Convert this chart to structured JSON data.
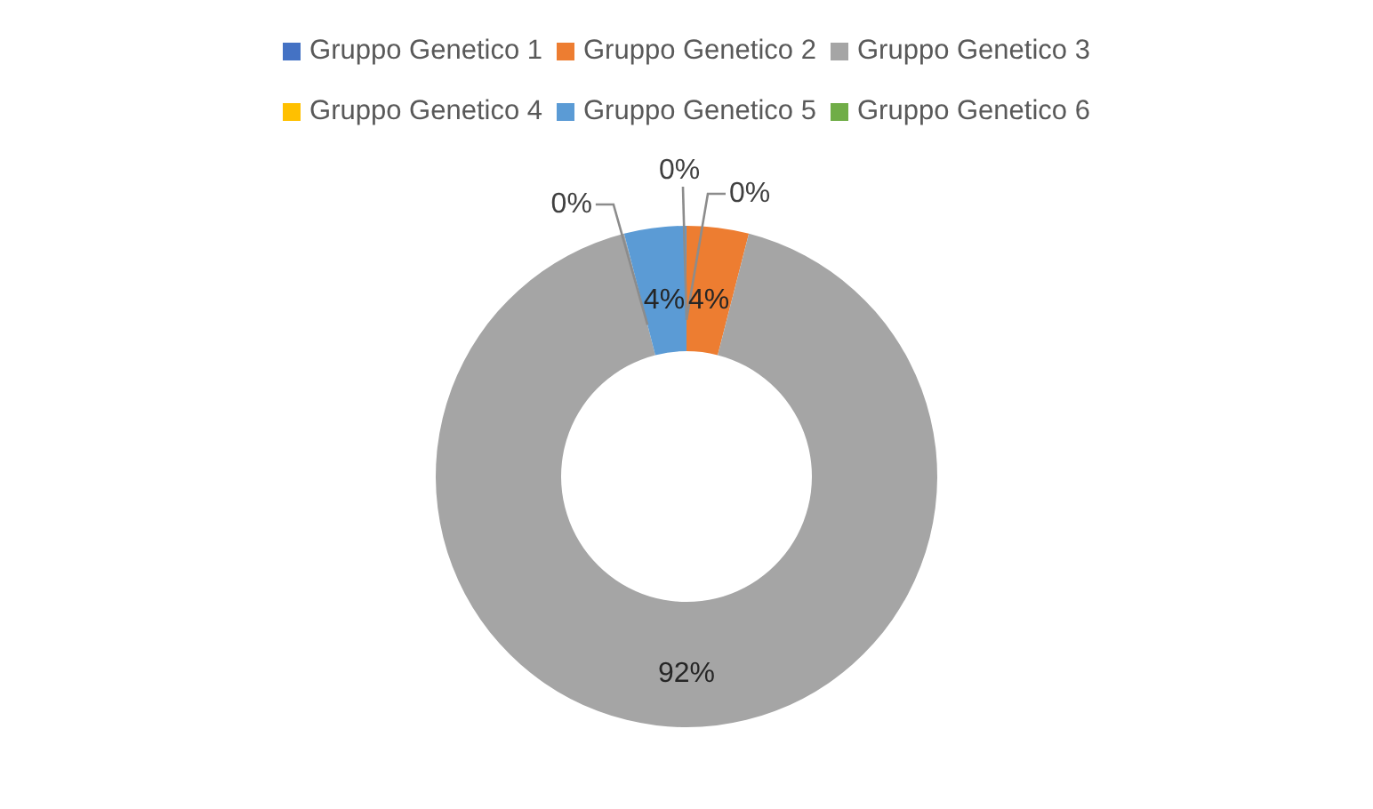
{
  "chart_data": {
    "type": "donut",
    "categories": [
      "Gruppo Genetico 1",
      "Gruppo Genetico 2",
      "Gruppo Genetico 3",
      "Gruppo Genetico 4",
      "Gruppo Genetico 5",
      "Gruppo Genetico 6"
    ],
    "values": [
      0,
      4,
      92,
      0,
      4,
      0
    ],
    "value_labels": [
      "0%",
      "4%",
      "92%",
      "0%",
      "4%",
      "0%"
    ],
    "colors": [
      "#4472c4",
      "#ed7d31",
      "#a5a5a5",
      "#ffc000",
      "#5b9bd5",
      "#70ad47"
    ],
    "legend": "top"
  }
}
